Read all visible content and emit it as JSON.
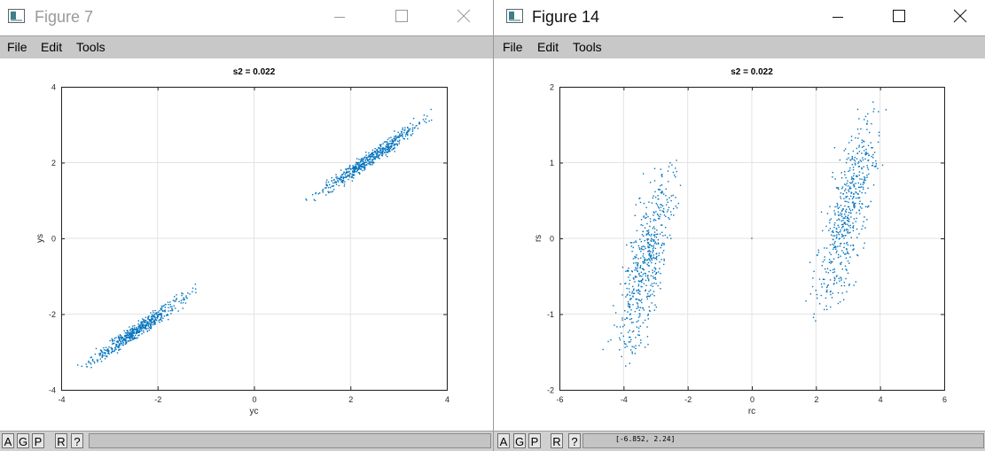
{
  "windows": [
    {
      "title": "Figure 7",
      "active": false,
      "menu": [
        "File",
        "Edit",
        "Tools"
      ],
      "toolbar": [
        "A",
        "G",
        "P",
        "R",
        "?"
      ],
      "coord_readout": "",
      "chart_data": {
        "type": "scatter",
        "title": "s2 = 0.022",
        "xlabel": "yc",
        "ylabel": "ys",
        "xlim": [
          -4,
          4
        ],
        "ylim": [
          -4,
          4
        ],
        "xticks": [
          -4,
          -2,
          0,
          2,
          4
        ],
        "yticks": [
          -4,
          -2,
          0,
          2,
          4
        ],
        "xtick_labels": [
          "-4",
          "-2",
          "0",
          "2",
          "4"
        ],
        "ytick_labels": [
          "-4",
          "-2",
          "0",
          "2",
          "4"
        ],
        "grid": true,
        "marker_color": "#0072bd",
        "clusters": [
          {
            "center": [
              2.4,
              2.1
            ],
            "extent_x": [
              0.85,
              3.8
            ],
            "extent_y": [
              1.0,
              3.75
            ],
            "orientation": "diagonal",
            "approx_points": 1600
          },
          {
            "center": [
              -2.4,
              -2.4
            ],
            "extent_x": [
              -3.8,
              -1.0
            ],
            "extent_y": [
              -3.6,
              -1.05
            ],
            "orientation": "diagonal",
            "approx_points": 1600
          }
        ]
      }
    },
    {
      "title": "Figure 14",
      "active": true,
      "menu": [
        "File",
        "Edit",
        "Tools"
      ],
      "toolbar": [
        "A",
        "G",
        "P",
        "R",
        "?"
      ],
      "coord_readout": "[-6.852, 2.24]",
      "chart_data": {
        "type": "scatter",
        "title": "s2 = 0.022",
        "xlabel": "rc",
        "ylabel": "rs",
        "xlim": [
          -6,
          6
        ],
        "ylim": [
          -2,
          2
        ],
        "xticks": [
          -6,
          -4,
          -2,
          0,
          2,
          4,
          6
        ],
        "yticks": [
          -2,
          -1,
          0,
          1,
          2
        ],
        "xtick_labels": [
          "-6",
          "-4",
          "-2",
          "0",
          "2",
          "4",
          "6"
        ],
        "ytick_labels": [
          "-2",
          "-1",
          "0",
          "1",
          "2"
        ],
        "grid": true,
        "marker_color": "#0072bd",
        "clusters": [
          {
            "center": [
              -3.3,
              -0.3
            ],
            "extent_x": [
              -4.6,
              -1.6
            ],
            "extent_y": [
              -1.72,
              0.85
            ],
            "orientation": "tilted",
            "approx_points": 1600
          },
          {
            "center": [
              3.0,
              0.35
            ],
            "extent_x": [
              1.3,
              4.7
            ],
            "extent_y": [
              -1.0,
              1.75
            ],
            "orientation": "tilted",
            "approx_points": 1600
          }
        ],
        "extra_points": [
          [
            0,
            0
          ]
        ]
      }
    }
  ]
}
